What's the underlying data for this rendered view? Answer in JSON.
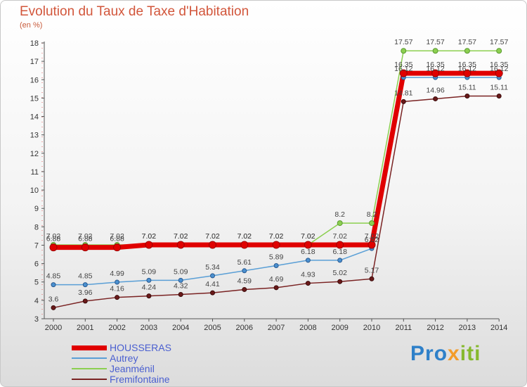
{
  "title": "Evolution du Taux de Taxe d'Habitation",
  "unit_label": "(en %)",
  "logo": {
    "letters": [
      "P",
      "r",
      "o",
      "x",
      "i",
      "t",
      "i"
    ]
  },
  "chart_data": {
    "type": "line",
    "title": "Evolution du Taux de Taxe d'Habitation",
    "ylabel": "(en %)",
    "xlabel": "",
    "ylim": [
      3,
      18
    ],
    "yticks": [
      "3",
      "4",
      "5",
      "6",
      "7",
      "8",
      "9",
      "10",
      "11",
      "12",
      "13",
      "14",
      "15",
      "16",
      "17",
      "18"
    ],
    "x": [
      "2000",
      "2001",
      "2002",
      "2003",
      "2004",
      "2005",
      "2006",
      "2007",
      "2008",
      "2009",
      "2010",
      "2011",
      "2012",
      "2013",
      "2014"
    ],
    "grid": false,
    "legend_position": "bottom-left",
    "series": [
      {
        "name": "HOUSSERAS",
        "color": "#e00000",
        "values": [
          6.88,
          6.88,
          6.88,
          7.02,
          7.02,
          7.02,
          7.02,
          7.02,
          7.02,
          7.02,
          7.02,
          16.35,
          16.35,
          16.35,
          16.35
        ],
        "labels": [
          "6.88",
          "6.88",
          "6.88",
          "7.02",
          "7.02",
          "7.02",
          "7.02",
          "7.02",
          "7.02",
          "7.02",
          "7.02",
          "16.35",
          "16.35",
          "16.35",
          "16.35"
        ]
      },
      {
        "name": "Autrey",
        "color": "#5a9fd6",
        "values": [
          4.85,
          4.85,
          4.99,
          5.09,
          5.09,
          5.34,
          5.61,
          5.89,
          6.18,
          6.18,
          6.82,
          16.12,
          16.12,
          16.12,
          16.12
        ],
        "labels": [
          "4.85",
          "4.85",
          "4.99",
          "5.09",
          "5.09",
          "5.34",
          "5.61",
          "5.89",
          "6.18",
          "6.18",
          "6.82",
          "16.12",
          "16.12",
          "16.12",
          "16.12"
        ]
      },
      {
        "name": "Jeanménil",
        "color": "#8ccf50",
        "values": [
          7.02,
          7.02,
          7.02,
          7.02,
          7.02,
          7.02,
          7.02,
          7.02,
          7.02,
          8.2,
          8.2,
          17.57,
          17.57,
          17.57,
          17.57
        ],
        "labels": [
          "7.02",
          "7.02",
          "7.02",
          "7.02",
          "7.02",
          "7.02",
          "7.02",
          "7.02",
          "7.02",
          "8.2",
          "8.2",
          "17.57",
          "17.57",
          "17.57",
          "17.57"
        ]
      },
      {
        "name": "Fremifontaine",
        "color": "#7a2323",
        "values": [
          3.6,
          3.96,
          4.16,
          4.24,
          4.32,
          4.41,
          4.59,
          4.69,
          4.93,
          5.02,
          5.17,
          14.81,
          14.96,
          15.11,
          15.11
        ],
        "labels": [
          "3.6",
          "3.96",
          "4.16",
          "4.24",
          "4.32",
          "4.41",
          "4.59",
          "4.69",
          "4.93",
          "5.02",
          "5.17",
          "14.81",
          "14.96",
          "15.11",
          "15.11"
        ]
      }
    ]
  }
}
